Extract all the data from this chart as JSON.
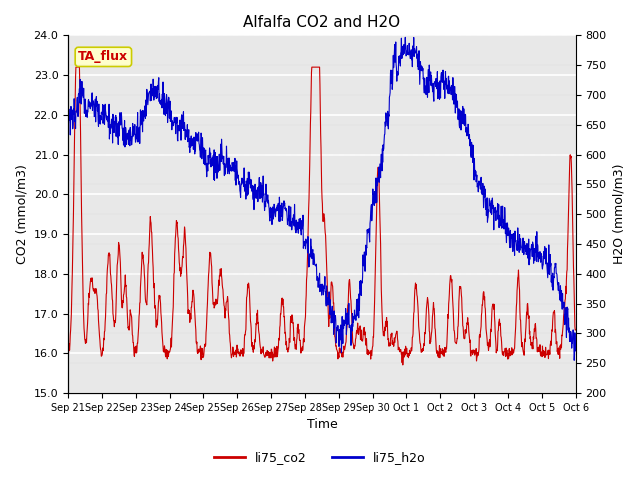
{
  "title": "Alfalfa CO2 and H2O",
  "xlabel": "Time",
  "ylabel_left": "CO2 (mmol/m3)",
  "ylabel_right": "H2O (mmol/m3)",
  "ylim_left": [
    15.0,
    24.0
  ],
  "ylim_right": [
    200,
    800
  ],
  "yticks_left": [
    15.0,
    16.0,
    17.0,
    18.0,
    19.0,
    20.0,
    21.0,
    22.0,
    23.0,
    24.0
  ],
  "yticks_right": [
    200,
    250,
    300,
    350,
    400,
    450,
    500,
    550,
    600,
    650,
    700,
    750,
    800
  ],
  "color_co2": "#cc0000",
  "color_h2o": "#0000cc",
  "line_width": 0.8,
  "legend_labels": [
    "li75_co2",
    "li75_h2o"
  ],
  "annotation_text": "TA_flux",
  "annotation_color": "#cc0000",
  "annotation_bbox_facecolor": "#ffffcc",
  "annotation_bbox_edgecolor": "#cccc00",
  "plot_bg_color": "#e8e8e8",
  "grid_color": "white",
  "x_tick_labels": [
    "Sep 21",
    "Sep 22",
    "Sep 23",
    "Sep 24",
    "Sep 25",
    "Sep 26",
    "Sep 27",
    "Sep 28",
    "Sep 29",
    "Sep 30",
    "Oct 1",
    "Oct 2",
    "Oct 3",
    "Oct 4",
    "Oct 5",
    "Oct 6"
  ],
  "n_days": 15,
  "n_per_day": 96
}
